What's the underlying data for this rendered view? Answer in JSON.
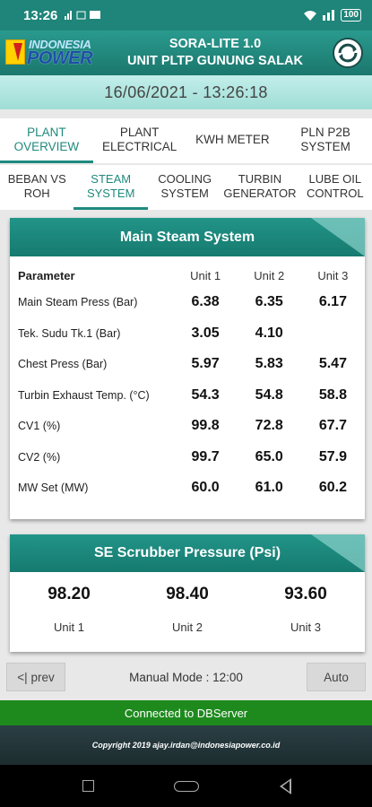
{
  "status": {
    "time": "13:26",
    "left_icons": "▮ ▮ ▯",
    "right_icons": "⟡ ᛁᛁ",
    "battery": "100"
  },
  "header": {
    "logo_line1": "INDONESIA",
    "logo_line2": "POWER",
    "title_line1": "SORA-LITE 1.0",
    "title_line2": "UNIT PLTP GUNUNG SALAK",
    "icon": "cycle-logo-icon"
  },
  "datetime": "16/06/2021 - 13:26:18",
  "tabs_primary": [
    {
      "label": "PLANT OVERVIEW",
      "active": true
    },
    {
      "label": "PLANT ELECTRICAL",
      "active": false
    },
    {
      "label": "KWH METER",
      "active": false
    },
    {
      "label": "PLN P2B SYSTEM",
      "active": false
    }
  ],
  "tabs_secondary": [
    {
      "label": "BEBAN VS ROH",
      "active": false
    },
    {
      "label": "STEAM SYSTEM",
      "active": true
    },
    {
      "label": "COOLING SYSTEM",
      "active": false
    },
    {
      "label": "TURBIN GENERATOR",
      "active": false
    },
    {
      "label": "LUBE OIL CONTROL",
      "active": false
    }
  ],
  "main_steam": {
    "title": "Main Steam System",
    "header": {
      "param": "Parameter",
      "u1": "Unit 1",
      "u2": "Unit 2",
      "u3": "Unit 3"
    },
    "rows": [
      {
        "name": "Main Steam Press (Bar)",
        "u1": "6.38",
        "u2": "6.35",
        "u3": "6.17"
      },
      {
        "name": "Tek. Sudu Tk.1 (Bar)",
        "u1": "3.05",
        "u2": "4.10",
        "u3": ""
      },
      {
        "name": "Chest Press (Bar)",
        "u1": "5.97",
        "u2": "5.83",
        "u3": "5.47"
      },
      {
        "name": "Turbin Exhaust Temp. (°C)",
        "u1": "54.3",
        "u2": "54.8",
        "u3": "58.8"
      },
      {
        "name": "CV1 (%)",
        "u1": "99.8",
        "u2": "72.8",
        "u3": "67.7"
      },
      {
        "name": "CV2 (%)",
        "u1": "99.7",
        "u2": "65.0",
        "u3": "57.9"
      },
      {
        "name": "MW Set (MW)",
        "u1": "60.0",
        "u2": "61.0",
        "u3": "60.2"
      }
    ]
  },
  "scrubber": {
    "title": "SE Scrubber Pressure (Psi)",
    "units": [
      {
        "value": "98.20",
        "label": "Unit 1"
      },
      {
        "value": "98.40",
        "label": "Unit 2"
      },
      {
        "value": "93.60",
        "label": "Unit 3"
      }
    ]
  },
  "controls": {
    "prev": "<| prev",
    "mode": "Manual Mode : 12:00",
    "auto": "Auto"
  },
  "connection": "Connected to DBServer",
  "copyright": "Copyright 2019 ajay.irdan@indonesiapower.co.id",
  "colors": {
    "accent": "#1f8a7e",
    "connected": "#1e8a1e"
  }
}
